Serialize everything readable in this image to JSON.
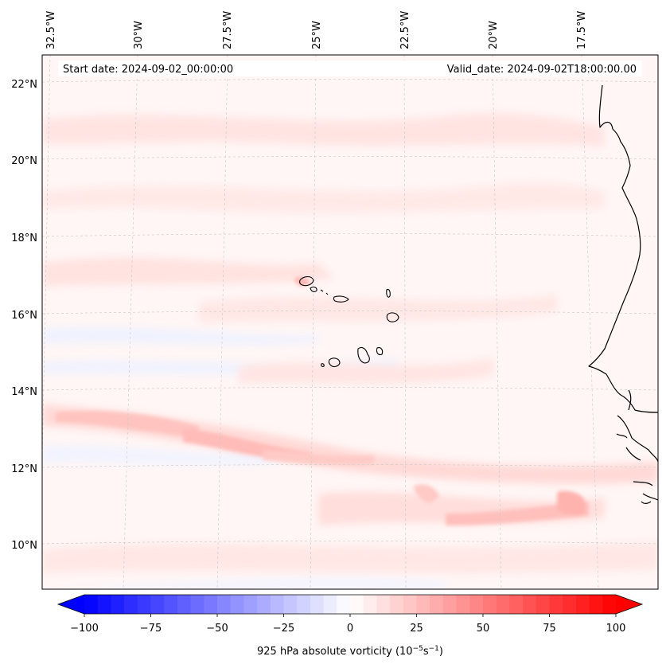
{
  "header": {
    "start_date": "Start date: 2024-09-02_00:00:00",
    "valid_date": "Valid_date: 2024-09-02T18:00:00.00"
  },
  "map": {
    "lon_labels": [
      "32.5°W",
      "30°W",
      "27.5°W",
      "25°W",
      "22.5°W",
      "20°W",
      "17.5°W"
    ],
    "lat_labels": [
      "22°N",
      "20°N",
      "18°N",
      "16°N",
      "14°N",
      "12°N",
      "10°N"
    ]
  },
  "colorbar": {
    "ticks": [
      "−100",
      "−75",
      "−50",
      "−25",
      "0",
      "25",
      "50",
      "75",
      "100"
    ],
    "label": "925 hPa absolute vorticity (10",
    "label_exp1": "−5",
    "label_mid": "s",
    "label_exp2": "−1",
    "label_end": ")",
    "vmin": -100,
    "vmax": 100,
    "low_color": "#0000ff",
    "mid_color": "#ffffff",
    "high_color": "#ff0000"
  },
  "colors": {
    "background_field": "#fff6f5",
    "coastline": "#000000",
    "gridline": "#cccccc"
  }
}
